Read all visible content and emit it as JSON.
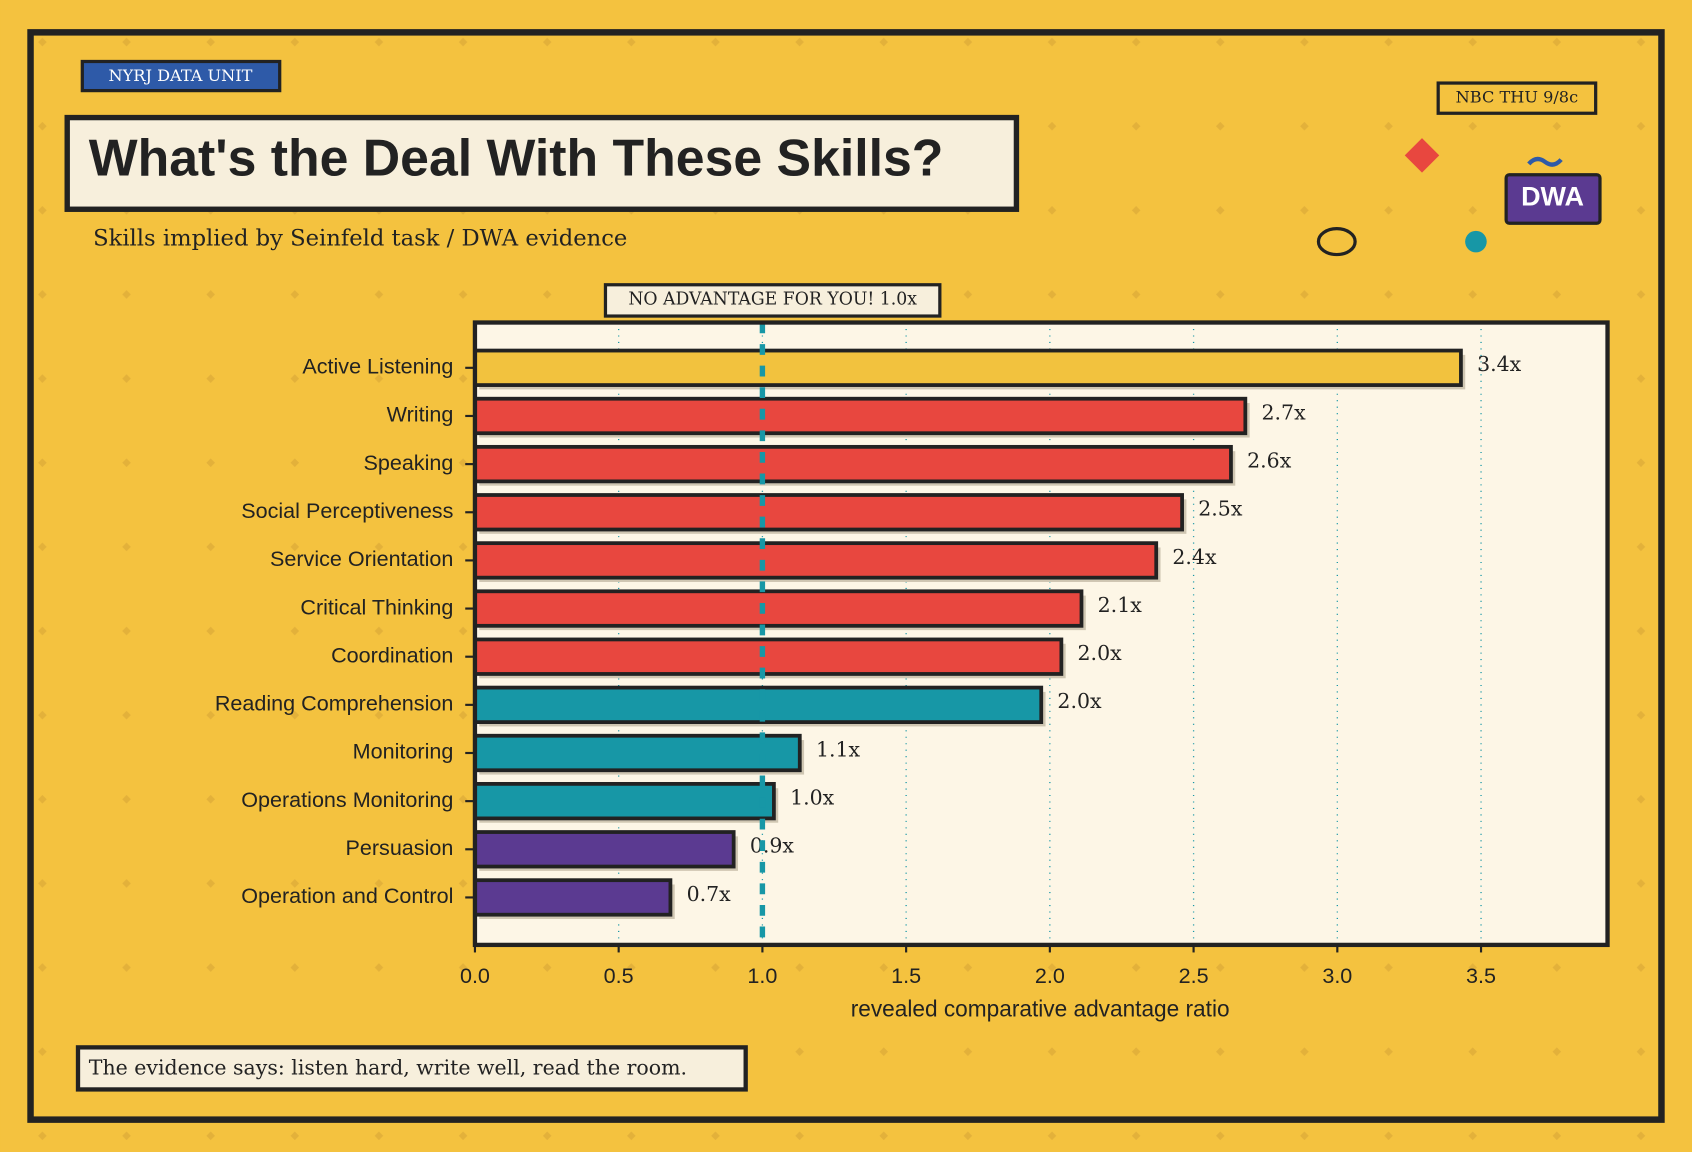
{
  "badge": "NYRJ DATA UNIT",
  "network_tag": "NBC THU 9/8c",
  "logo": "DWA",
  "footer_note": "The evidence says: listen hard, write well, read the room.",
  "chart_data": {
    "type": "hbar",
    "title": "What's the Deal With These Skills?",
    "subtitle": "Skills implied by Seinfeld task / DWA evidence",
    "xlabel": "revealed comparative advantage ratio",
    "categories": [
      "Active Listening",
      "Writing",
      "Speaking",
      "Social Perceptiveness",
      "Service Orientation",
      "Critical Thinking",
      "Coordination",
      "Reading Comprehension",
      "Monitoring",
      "Operations Monitoring",
      "Persuasion",
      "Operation and Control"
    ],
    "values": [
      3.43,
      2.68,
      2.63,
      2.46,
      2.37,
      2.11,
      2.04,
      1.97,
      1.13,
      1.04,
      0.9,
      0.68
    ],
    "value_labels": [
      "3.4x",
      "2.7x",
      "2.6x",
      "2.5x",
      "2.4x",
      "2.1x",
      "2.0x",
      "2.0x",
      "1.1x",
      "1.0x",
      "0.9x",
      "0.7x"
    ],
    "colors": [
      "#f2c23e",
      "#e8473f",
      "#e8473f",
      "#e8473f",
      "#e8473f",
      "#e8473f",
      "#e8473f",
      "#1797a6",
      "#1797a6",
      "#1797a6",
      "#5b3a91",
      "#5b3a91"
    ],
    "xlim": [
      0,
      3.94
    ],
    "xticks": [
      {
        "value": 0,
        "label": "0.0"
      },
      0.5,
      {
        "value": 1,
        "label": "1.0"
      },
      1.5,
      {
        "value": 2,
        "label": "2.0"
      },
      2.5,
      {
        "value": 3,
        "label": "3.0"
      },
      3.5
    ],
    "grid": true,
    "reference_line": {
      "value": 1,
      "label": "NO ADVANTAGE FOR YOU! 1.0x",
      "color": "#1797a6"
    }
  }
}
